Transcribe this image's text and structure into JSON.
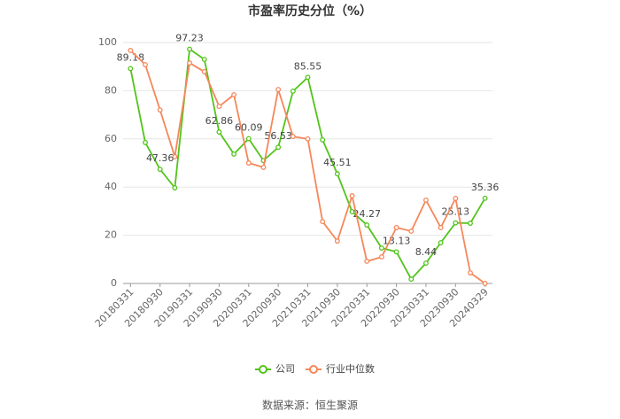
{
  "chart_data": {
    "type": "line",
    "title": "市盈率历史分位（%）",
    "categories": [
      "20180331",
      null,
      "20180930",
      null,
      "20190331",
      null,
      "20190930",
      null,
      "20200331",
      null,
      "20200930",
      null,
      "20210331",
      null,
      "20210930",
      null,
      "20220331",
      null,
      "20220930",
      null,
      "20230331",
      null,
      "20230930",
      null,
      "20240329"
    ],
    "series": [
      {
        "name": "公司",
        "color": "#52c41a",
        "values": [
          89.18,
          58.5,
          47.36,
          39.7,
          97.23,
          93,
          62.86,
          53.7,
          60.09,
          51,
          56.53,
          79.8,
          85.55,
          59.6,
          45.51,
          29.8,
          24.27,
          14.7,
          13.13,
          1.8,
          8.44,
          16.9,
          25.13,
          25,
          35.36
        ],
        "value_labels": [
          "89.18",
          null,
          "47.36",
          null,
          "97.23",
          null,
          "62.86",
          null,
          "60.09",
          null,
          "56.53",
          null,
          "85.55",
          null,
          "45.51",
          null,
          "24.27",
          null,
          "13.13",
          null,
          "8.44",
          null,
          "25.13",
          null,
          "35.36"
        ]
      },
      {
        "name": "行业中位数",
        "color": "#f5875a",
        "values": [
          96.7,
          90.8,
          72,
          52.6,
          91.5,
          87.9,
          73.5,
          78.3,
          50,
          48.2,
          80.5,
          61,
          60,
          25.7,
          17.6,
          36.4,
          9.2,
          11,
          23.2,
          21.7,
          34.6,
          23.2,
          35.3,
          4.4,
          0
        ]
      }
    ],
    "ylim": [
      0,
      100
    ],
    "yticks": [
      0,
      20,
      40,
      60,
      80,
      100
    ],
    "grid": true,
    "legend": "bottom",
    "source": "数据来源：恒生聚源"
  }
}
